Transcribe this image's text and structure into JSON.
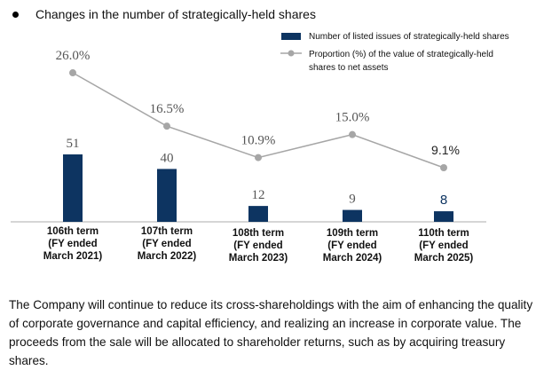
{
  "title": "Changes in the number of strategically-held shares",
  "legend": {
    "bar_label": "Number of listed issues of strategically-held shares",
    "line_label": "Proportion (%) of the value of strategically-held shares to net assets"
  },
  "chart_data": {
    "type": "bar+line",
    "title": "Changes in the number of strategically-held shares",
    "categories": [
      [
        "106th term",
        "(FY ended",
        "March 2021)"
      ],
      [
        "107th term",
        "(FY ended",
        "March 2022)"
      ],
      [
        "108th term",
        "(FY ended",
        "March 2023)"
      ],
      [
        "109th term",
        "(FY ended",
        "March 2024)"
      ],
      [
        "110th term",
        "(FY ended",
        "March 2025)"
      ]
    ],
    "series": [
      {
        "name": "Number of listed issues of strategically-held shares",
        "type": "bar",
        "values": [
          51,
          40,
          12,
          9,
          8
        ],
        "labels": [
          "51",
          "40",
          "12",
          "9",
          "8"
        ],
        "color": "#0d3461"
      },
      {
        "name": "Proportion (%) of the value of strategically-held shares to net assets",
        "type": "line",
        "values": [
          26.0,
          16.5,
          10.9,
          15.0,
          9.1
        ],
        "labels": [
          "26.0%",
          "16.5%",
          "10.9%",
          "15.0%",
          "9.1%"
        ],
        "color": "#a6a6a6"
      }
    ],
    "legend_position": "top-right",
    "grid": false
  },
  "paragraph": "The Company will continue to reduce its cross-shareholdings with the aim of enhancing the quality of corporate governance and capital efficiency, and realizing an increase in corporate value. The proceeds from the sale will be allocated to shareholder returns, such as by acquiring treasury shares."
}
